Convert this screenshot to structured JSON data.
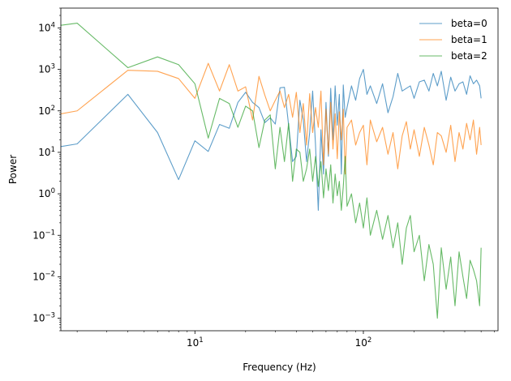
{
  "chart_data": {
    "type": "line",
    "title": "",
    "xlabel": "Frequency (Hz)",
    "ylabel": "Power",
    "xscale": "log",
    "yscale": "log",
    "xlim": [
      1.6,
      630
    ],
    "ylim": [
      0.0005,
      30000
    ],
    "grid": false,
    "legend_position": "top-right",
    "x_ticks": [
      {
        "value": 10,
        "base": "10",
        "exp": "1"
      },
      {
        "value": 100,
        "base": "10",
        "exp": "2"
      }
    ],
    "y_ticks": [
      {
        "value": 0.001,
        "base": "10",
        "exp": "−3"
      },
      {
        "value": 0.01,
        "base": "10",
        "exp": "−2"
      },
      {
        "value": 0.1,
        "base": "10",
        "exp": "−1"
      },
      {
        "value": 1,
        "base": "10",
        "exp": "0"
      },
      {
        "value": 10,
        "base": "10",
        "exp": "1"
      },
      {
        "value": 100,
        "base": "10",
        "exp": "2"
      },
      {
        "value": 1000,
        "base": "10",
        "exp": "3"
      },
      {
        "value": 10000,
        "base": "10",
        "exp": "4"
      }
    ],
    "series": [
      {
        "name": "beta=0",
        "color": "#1f77b4",
        "x": [
          1,
          2,
          4,
          6,
          8,
          10,
          12,
          14,
          16,
          18,
          20,
          22,
          24,
          26,
          28,
          30,
          32,
          34,
          36,
          38,
          40,
          42,
          44,
          46,
          48,
          50,
          52,
          54,
          56,
          58,
          60,
          62,
          64,
          66,
          68,
          70,
          72,
          74,
          76,
          78,
          80,
          85,
          90,
          95,
          100,
          105,
          110,
          120,
          130,
          140,
          150,
          160,
          170,
          180,
          190,
          200,
          215,
          230,
          245,
          260,
          275,
          290,
          310,
          330,
          350,
          370,
          390,
          410,
          430,
          450,
          470,
          490,
          500
        ],
        "y": [
          10,
          16,
          250,
          30,
          2.2,
          19,
          10.5,
          47,
          38,
          160,
          280,
          160,
          120,
          52,
          68,
          48,
          360,
          370,
          45,
          6,
          8,
          180,
          60,
          6,
          30,
          300,
          15,
          0.4,
          35,
          3,
          160,
          8,
          350,
          20,
          400,
          45,
          250,
          3,
          420,
          70,
          120,
          400,
          180,
          600,
          1000,
          250,
          400,
          150,
          450,
          90,
          220,
          800,
          300,
          350,
          400,
          200,
          500,
          550,
          300,
          800,
          400,
          900,
          180,
          650,
          300,
          450,
          500,
          250,
          700,
          450,
          550,
          400,
          200
        ]
      },
      {
        "name": "beta=1",
        "color": "#ff7f0e",
        "x": [
          1,
          2,
          4,
          6,
          8,
          10,
          12,
          14,
          16,
          18,
          20,
          22,
          24,
          26,
          28,
          30,
          32,
          34,
          36,
          38,
          40,
          42,
          44,
          46,
          48,
          50,
          52,
          54,
          56,
          58,
          60,
          62,
          64,
          66,
          68,
          70,
          72,
          74,
          76,
          78,
          80,
          85,
          90,
          95,
          100,
          105,
          110,
          120,
          130,
          140,
          150,
          160,
          170,
          180,
          190,
          200,
          215,
          230,
          245,
          260,
          275,
          290,
          310,
          330,
          350,
          370,
          390,
          410,
          430,
          450,
          470,
          490,
          500
        ],
        "y": [
          60,
          100,
          950,
          900,
          600,
          200,
          1400,
          300,
          1300,
          300,
          380,
          60,
          680,
          240,
          100,
          180,
          300,
          120,
          250,
          70,
          280,
          30,
          150,
          15,
          260,
          30,
          120,
          40,
          300,
          5,
          110,
          9,
          160,
          12,
          85,
          7,
          95,
          20,
          110,
          3,
          40,
          60,
          15,
          30,
          45,
          5,
          60,
          18,
          40,
          9,
          30,
          4,
          25,
          55,
          12,
          35,
          8,
          40,
          15,
          5,
          30,
          25,
          10,
          45,
          6,
          30,
          12,
          50,
          20,
          60,
          9,
          40,
          15
        ]
      },
      {
        "name": "beta=2",
        "color": "#2ca02c",
        "x": [
          1,
          2,
          4,
          6,
          8,
          10,
          12,
          14,
          16,
          18,
          20,
          22,
          24,
          26,
          28,
          30,
          32,
          34,
          36,
          38,
          40,
          42,
          44,
          46,
          48,
          50,
          52,
          54,
          56,
          58,
          60,
          62,
          64,
          66,
          68,
          70,
          72,
          74,
          76,
          78,
          80,
          85,
          90,
          95,
          100,
          105,
          110,
          120,
          130,
          140,
          150,
          160,
          170,
          180,
          190,
          200,
          215,
          230,
          245,
          260,
          275,
          290,
          310,
          330,
          350,
          370,
          390,
          410,
          430,
          450,
          470,
          490,
          500
        ],
        "y": [
          9000,
          13000,
          1100,
          2000,
          1300,
          450,
          22,
          200,
          150,
          40,
          130,
          100,
          13,
          60,
          80,
          4,
          40,
          6,
          50,
          2,
          12,
          10,
          2,
          4,
          12,
          2,
          8,
          1.5,
          6,
          0.8,
          4,
          1.2,
          5,
          0.6,
          3,
          0.9,
          2,
          0.4,
          1.5,
          8,
          0.5,
          1,
          0.2,
          0.6,
          0.15,
          0.8,
          0.1,
          0.4,
          0.08,
          0.3,
          0.05,
          0.2,
          0.02,
          0.15,
          0.3,
          0.04,
          0.1,
          0.008,
          0.06,
          0.02,
          0.001,
          0.05,
          0.005,
          0.03,
          0.002,
          0.04,
          0.01,
          0.003,
          0.025,
          0.015,
          0.008,
          0.002,
          0.05
        ]
      }
    ]
  }
}
